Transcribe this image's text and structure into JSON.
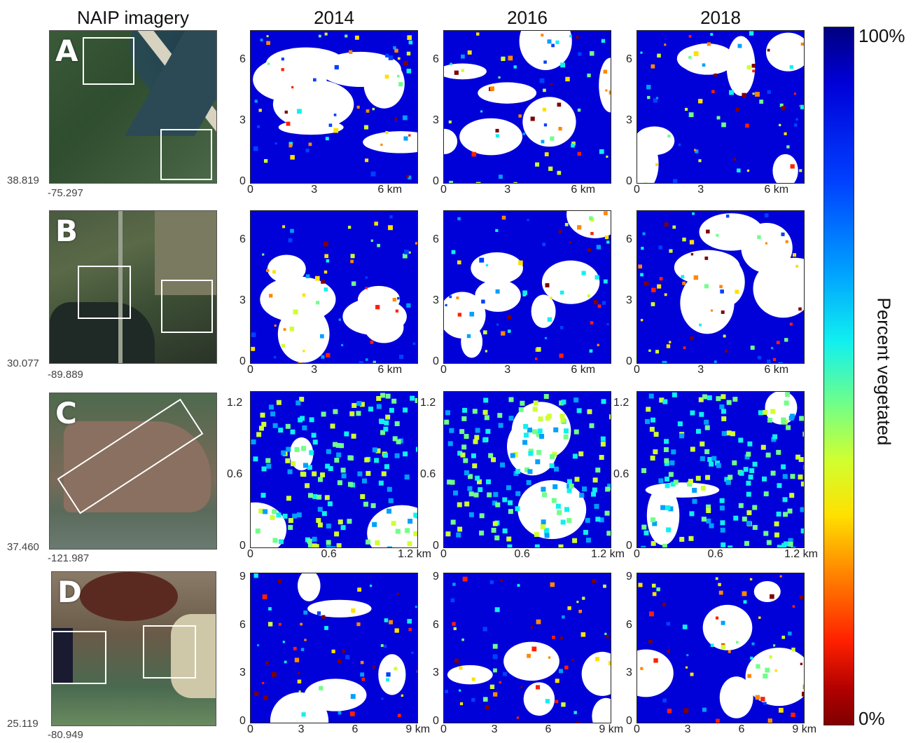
{
  "headers": [
    "NAIP imagery",
    "2014",
    "2016",
    "2018"
  ],
  "colorbar": {
    "label": "Percent vegetated",
    "max_label": "100%",
    "min_label": "0%",
    "colormap": "jet_reversed",
    "colors": [
      "#00007f",
      "#0000d8",
      "#0040ff",
      "#00a0ff",
      "#10f0f0",
      "#70ff88",
      "#d0ff30",
      "#ffe000",
      "#ff8800",
      "#ff2000",
      "#800000"
    ]
  },
  "rows": [
    {
      "letter": "A",
      "lat": "38.819",
      "lon": "-75.297",
      "yticks": [
        "0",
        "3",
        "6"
      ],
      "xticks": [
        "0",
        "3",
        "6 km"
      ]
    },
    {
      "letter": "B",
      "lat": "30.077",
      "lon": "-89.889",
      "yticks": [
        "0",
        "3",
        "6"
      ],
      "xticks": [
        "0",
        "3",
        "6 km"
      ]
    },
    {
      "letter": "C",
      "lat": "37.460",
      "lon": "-121.987",
      "yticks": [
        "0",
        "0.6",
        "1.2"
      ],
      "xticks": [
        "0",
        "0.6",
        "1.2 km"
      ]
    },
    {
      "letter": "D",
      "lat": "25.119",
      "lon": "-80.949",
      "yticks": [
        "0",
        "3",
        "6",
        "9"
      ],
      "xticks": [
        "0",
        "3",
        "6",
        "9 km"
      ]
    }
  ],
  "chart_data": {
    "type": "heatmap",
    "title": "",
    "columns": [
      "2014",
      "2016",
      "2018"
    ],
    "rows": [
      "A",
      "B",
      "C",
      "D"
    ],
    "value_label": "Percent vegetated",
    "value_range": [
      0,
      100
    ],
    "axis_ranges_km": {
      "A": [
        0,
        7.5
      ],
      "B": [
        0,
        7.5
      ],
      "C": [
        0,
        1.3
      ],
      "D": [
        0,
        9.3
      ]
    }
  }
}
